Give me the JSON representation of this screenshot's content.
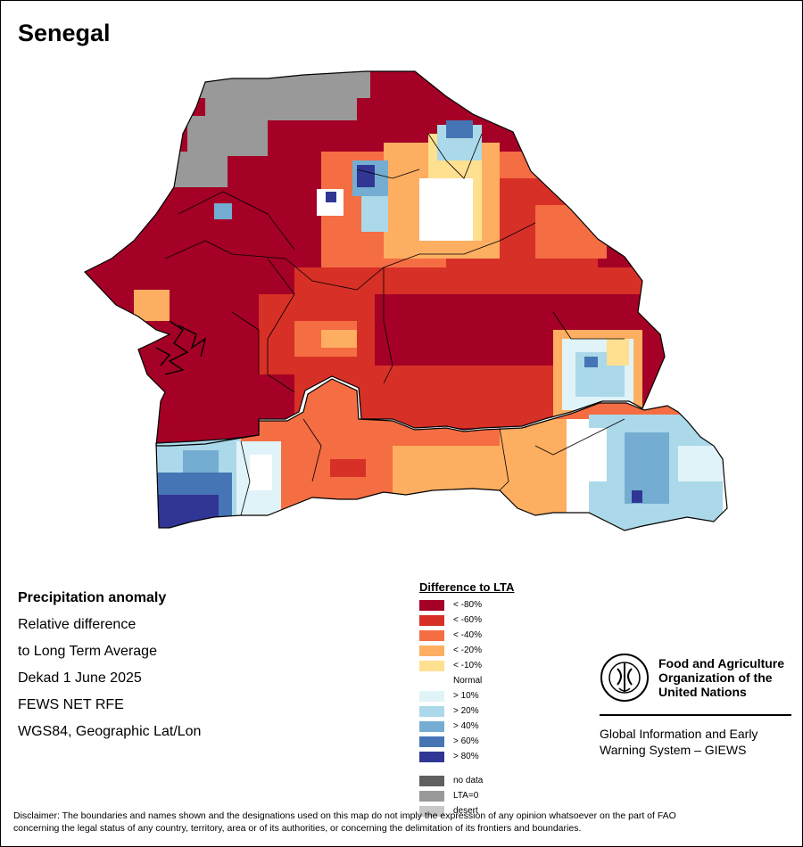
{
  "title": "Senegal",
  "info": {
    "heading": "Precipitation anomaly",
    "line1": "Relative difference",
    "line2": "to Long Term Average",
    "line3": "Dekad 1 June 2025",
    "line4": "FEWS NET RFE",
    "line5": "WGS84, Geographic Lat/Lon"
  },
  "legend": {
    "title": "Difference to LTA",
    "items": [
      {
        "label": "< -80%",
        "color": "#a50026"
      },
      {
        "label": "< -60%",
        "color": "#d73027"
      },
      {
        "label": "< -40%",
        "color": "#f46d43"
      },
      {
        "label": "< -20%",
        "color": "#fdae61"
      },
      {
        "label": "< -10%",
        "color": "#fee090"
      },
      {
        "label": "Normal",
        "color": "#ffffff"
      },
      {
        "label": "> 10%",
        "color": "#e0f3f8"
      },
      {
        "label": "> 20%",
        "color": "#abd9e9"
      },
      {
        "label": "> 40%",
        "color": "#74add1"
      },
      {
        "label": "> 60%",
        "color": "#4575b4"
      },
      {
        "label": "> 80%",
        "color": "#313695"
      }
    ],
    "extra": [
      {
        "label": "no data",
        "color": "#606060"
      },
      {
        "label": "LTA=0",
        "color": "#999999"
      },
      {
        "label": "desert",
        "color": "#c8c8c8"
      }
    ]
  },
  "logo": {
    "org_line1": "Food and Agriculture",
    "org_line2": "Organization of the",
    "org_line3": "United Nations",
    "system_line1": "Global Information and Early",
    "system_line2": "Warning System – GIEWS"
  },
  "disclaimer": {
    "line1": "Disclaimer: The boundaries and names shown and the designations used on this map do not imply the expression of any opinion whatsoever on the part of FAO",
    "line2": "concerning the legal status of any country, territory, area or of its authorities, or concerning the delimitation of its frontiers and boundaries."
  }
}
